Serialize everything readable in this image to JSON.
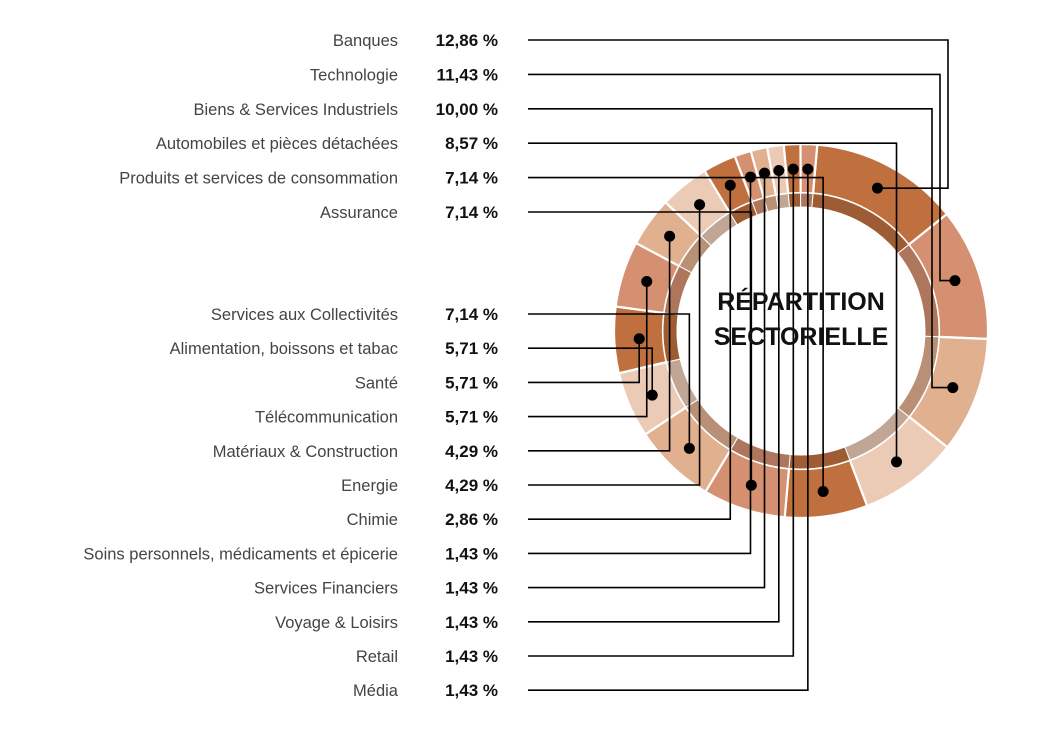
{
  "chart_data": {
    "type": "pie",
    "subtype": "donut",
    "title_lines": [
      "RÉPARTITION",
      "SECTORIELLE"
    ],
    "unit": "%",
    "slices": [
      {
        "label": "Banques",
        "display": "12,86 %",
        "value": 12.86,
        "color": "#c0703f"
      },
      {
        "label": "Technologie",
        "display": "11,43 %",
        "value": 11.43,
        "color": "#d49070"
      },
      {
        "label": "Biens & Services Industriels",
        "display": "10,00 %",
        "value": 10.0,
        "color": "#e0b08f"
      },
      {
        "label": "Automobiles et pièces détachées",
        "display": "8,57 %",
        "value": 8.57,
        "color": "#ebcbb6"
      },
      {
        "label": "Produits et services de consommation",
        "display": "7,14 %",
        "value": 7.14,
        "color": "#c0703f"
      },
      {
        "label": "Assurance",
        "display": "7,14 %",
        "value": 7.14,
        "color": "#d49070"
      },
      {
        "label": "Services aux Collectivités",
        "display": "7,14 %",
        "value": 7.14,
        "color": "#e0b08f"
      },
      {
        "label": "Alimentation, boissons et tabac",
        "display": "5,71 %",
        "value": 5.71,
        "color": "#ebcbb6"
      },
      {
        "label": "Santé",
        "display": "5,71 %",
        "value": 5.71,
        "color": "#c0703f"
      },
      {
        "label": "Télécommunication",
        "display": "5,71 %",
        "value": 5.71,
        "color": "#d49070"
      },
      {
        "label": "Matériaux & Construction",
        "display": "4,29 %",
        "value": 4.29,
        "color": "#e0b08f"
      },
      {
        "label": "Energie",
        "display": "4,29 %",
        "value": 4.29,
        "color": "#ebcbb6"
      },
      {
        "label": "Chimie",
        "display": "2,86 %",
        "value": 2.86,
        "color": "#c0703f"
      },
      {
        "label": "Soins personnels, médicaments et épicerie",
        "display": "1,43 %",
        "value": 1.43,
        "color": "#d49070"
      },
      {
        "label": "Services Financiers",
        "display": "1,43 %",
        "value": 1.43,
        "color": "#e0b08f"
      },
      {
        "label": "Voyage & Loisirs",
        "display": "1,43 %",
        "value": 1.43,
        "color": "#ebcbb6"
      },
      {
        "label": "Retail",
        "display": "1,43 %",
        "value": 1.43,
        "color": "#c0703f"
      },
      {
        "label": "Média",
        "display": "1,43 %",
        "value": 1.43,
        "color": "#d49070"
      }
    ]
  }
}
